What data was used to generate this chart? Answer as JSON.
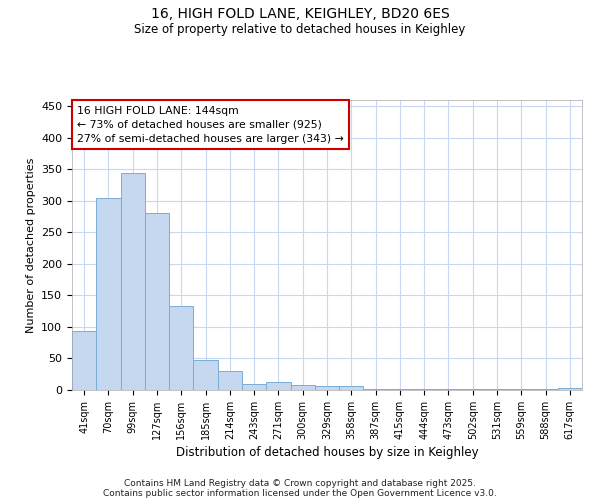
{
  "title_line1": "16, HIGH FOLD LANE, KEIGHLEY, BD20 6ES",
  "title_line2": "Size of property relative to detached houses in Keighley",
  "xlabel": "Distribution of detached houses by size in Keighley",
  "ylabel": "Number of detached properties",
  "categories": [
    "41sqm",
    "70sqm",
    "99sqm",
    "127sqm",
    "156sqm",
    "185sqm",
    "214sqm",
    "243sqm",
    "271sqm",
    "300sqm",
    "329sqm",
    "358sqm",
    "387sqm",
    "415sqm",
    "444sqm",
    "473sqm",
    "502sqm",
    "531sqm",
    "559sqm",
    "588sqm",
    "617sqm"
  ],
  "values": [
    93,
    305,
    345,
    280,
    133,
    47,
    30,
    10,
    12,
    8,
    6,
    6,
    2,
    1,
    1,
    1,
    1,
    1,
    1,
    1,
    3
  ],
  "bar_color": "#c5d8f0",
  "bar_edgecolor": "#7aadd4",
  "ylim": [
    0,
    460
  ],
  "yticks": [
    0,
    50,
    100,
    150,
    200,
    250,
    300,
    350,
    400,
    450
  ],
  "annotation_text": "16 HIGH FOLD LANE: 144sqm\n← 73% of detached houses are smaller (925)\n27% of semi-detached houses are larger (343) →",
  "annotation_box_edgecolor": "#cc0000",
  "background_color": "#ffffff",
  "plot_bg_color": "#ffffff",
  "grid_color": "#c8d8f0",
  "footer_line1": "Contains HM Land Registry data © Crown copyright and database right 2025.",
  "footer_line2": "Contains public sector information licensed under the Open Government Licence v3.0."
}
